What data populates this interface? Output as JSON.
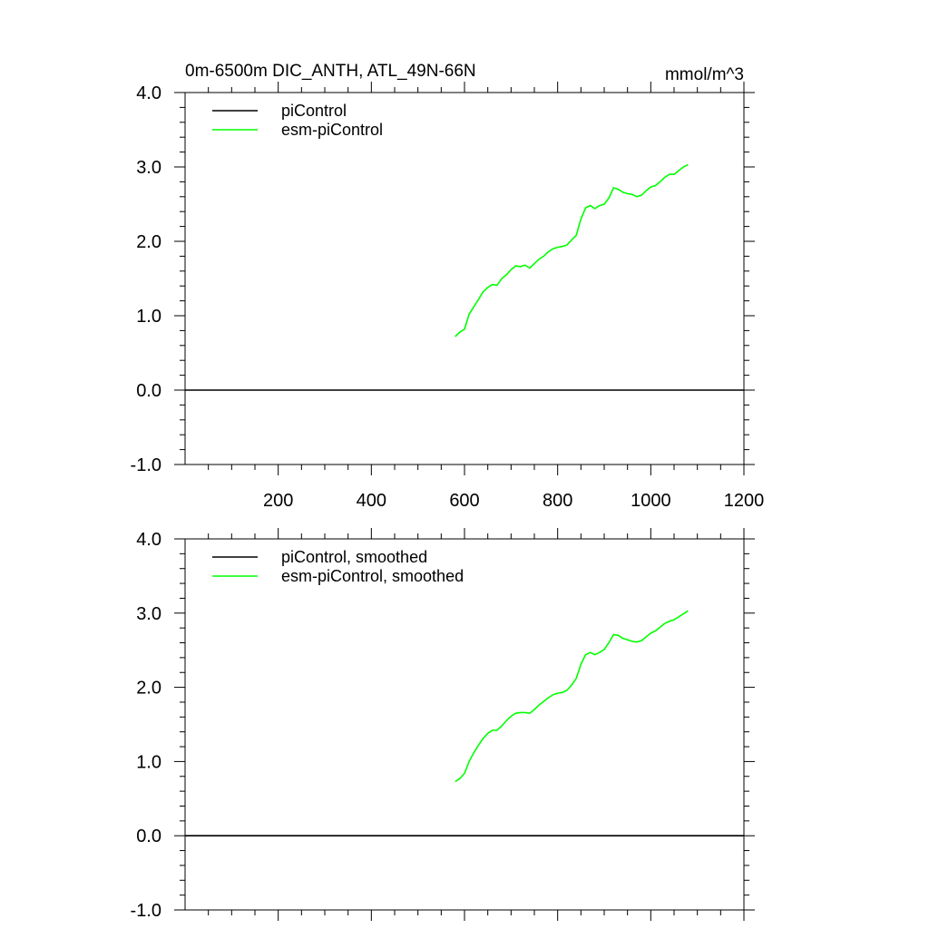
{
  "chart_data": [
    {
      "type": "line",
      "title": "0m-6500m DIC_ANTH, ATL_49N-66N",
      "units": "mmol/m^3",
      "xlim": [
        0,
        1200
      ],
      "ylim": [
        -1.0,
        4.0
      ],
      "xticks": [
        200,
        400,
        600,
        800,
        1000,
        1200
      ],
      "xtick_labels": [
        "200",
        "400",
        "600",
        "800",
        "1000",
        "1200"
      ],
      "show_x_tick_labels": true,
      "yticks": [
        -1.0,
        0.0,
        1.0,
        2.0,
        3.0,
        4.0
      ],
      "ytick_labels": [
        "-1.0",
        "0.0",
        "1.0",
        "2.0",
        "3.0",
        "4.0"
      ],
      "legend_position": "top-left",
      "grid": false,
      "series": [
        {
          "name": "piControl",
          "color": "#000000",
          "x": [
            0,
            1200
          ],
          "y": [
            0.0,
            0.0
          ]
        },
        {
          "name": "esm-piControl",
          "color": "#00ff00",
          "x": [
            580,
            590,
            600,
            610,
            620,
            630,
            640,
            650,
            660,
            670,
            680,
            690,
            700,
            710,
            720,
            730,
            740,
            750,
            760,
            770,
            780,
            790,
            800,
            810,
            820,
            830,
            840,
            850,
            860,
            870,
            880,
            890,
            900,
            910,
            920,
            930,
            940,
            950,
            960,
            970,
            980,
            990,
            1000,
            1010,
            1020,
            1030,
            1040,
            1050,
            1060,
            1070,
            1080
          ],
          "y": [
            0.72,
            0.78,
            0.82,
            1.02,
            1.12,
            1.22,
            1.32,
            1.38,
            1.42,
            1.41,
            1.5,
            1.55,
            1.62,
            1.67,
            1.66,
            1.68,
            1.64,
            1.7,
            1.76,
            1.8,
            1.86,
            1.9,
            1.92,
            1.93,
            1.95,
            2.02,
            2.08,
            2.3,
            2.45,
            2.48,
            2.44,
            2.48,
            2.5,
            2.58,
            2.72,
            2.7,
            2.66,
            2.64,
            2.63,
            2.6,
            2.62,
            2.68,
            2.73,
            2.75,
            2.8,
            2.86,
            2.9,
            2.9,
            2.95,
            3.0,
            3.03
          ]
        }
      ]
    },
    {
      "type": "line",
      "title": "",
      "units": "",
      "xlim": [
        0,
        1200
      ],
      "ylim": [
        -1.0,
        4.0
      ],
      "xticks": [
        200,
        400,
        600,
        800,
        1000,
        1200
      ],
      "xtick_labels": [],
      "show_x_tick_labels": false,
      "yticks": [
        -1.0,
        0.0,
        1.0,
        2.0,
        3.0,
        4.0
      ],
      "ytick_labels": [
        "-1.0",
        "0.0",
        "1.0",
        "2.0",
        "3.0",
        "4.0"
      ],
      "legend_position": "top-left",
      "grid": false,
      "series": [
        {
          "name": "piControl, smoothed",
          "color": "#000000",
          "x": [
            0,
            1200
          ],
          "y": [
            0.0,
            0.0
          ]
        },
        {
          "name": "esm-piControl, smoothed",
          "color": "#00ff00",
          "x": [
            580,
            590,
            600,
            610,
            620,
            630,
            640,
            650,
            660,
            670,
            680,
            690,
            700,
            710,
            720,
            730,
            740,
            750,
            760,
            770,
            780,
            790,
            800,
            810,
            820,
            830,
            840,
            850,
            860,
            870,
            880,
            890,
            900,
            910,
            920,
            930,
            940,
            950,
            960,
            970,
            980,
            990,
            1000,
            1010,
            1020,
            1030,
            1040,
            1050,
            1060,
            1070,
            1080
          ],
          "y": [
            0.73,
            0.77,
            0.84,
            1.0,
            1.12,
            1.22,
            1.31,
            1.38,
            1.42,
            1.42,
            1.48,
            1.55,
            1.61,
            1.65,
            1.66,
            1.66,
            1.65,
            1.7,
            1.76,
            1.81,
            1.86,
            1.9,
            1.92,
            1.93,
            1.96,
            2.03,
            2.12,
            2.31,
            2.44,
            2.47,
            2.44,
            2.47,
            2.51,
            2.6,
            2.71,
            2.7,
            2.66,
            2.64,
            2.62,
            2.61,
            2.63,
            2.68,
            2.73,
            2.76,
            2.81,
            2.86,
            2.89,
            2.91,
            2.95,
            2.99,
            3.03
          ]
        }
      ]
    }
  ]
}
